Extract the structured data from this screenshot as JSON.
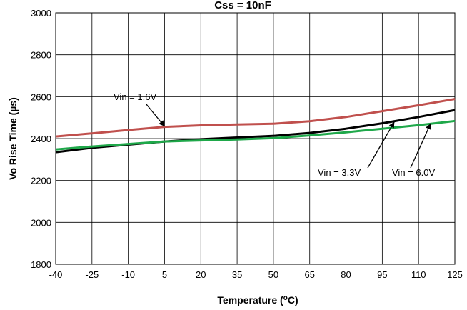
{
  "chart_data": {
    "type": "line",
    "title": "Css = 10nF",
    "xlabel": "Temperature (",
    "xlabel_sup": "o",
    "xlabel_tail": "C)",
    "ylabel": "Vo Rise Time  (µs)",
    "xlim": [
      -40,
      125
    ],
    "ylim": [
      1800,
      3000
    ],
    "xticks": [
      -40,
      -25,
      -10,
      5,
      20,
      35,
      50,
      65,
      80,
      95,
      110,
      125
    ],
    "yticks": [
      1800,
      2000,
      2200,
      2400,
      2600,
      2800,
      3000
    ],
    "grid": true,
    "series": [
      {
        "name": "Vin = 1.6V",
        "color": "#c0504d",
        "x": [
          -40,
          -25,
          -10,
          5,
          20,
          35,
          50,
          65,
          80,
          95,
          110,
          125
        ],
        "y": [
          2410,
          2425,
          2441,
          2456,
          2463,
          2467,
          2471,
          2483,
          2503,
          2531,
          2559,
          2589
        ]
      },
      {
        "name": "Vin = 3.3V",
        "color": "#000000",
        "x": [
          -40,
          -25,
          -10,
          5,
          20,
          35,
          50,
          65,
          80,
          95,
          110,
          125
        ],
        "y": [
          2335,
          2356,
          2371,
          2386,
          2397,
          2405,
          2413,
          2427,
          2447,
          2473,
          2503,
          2536
        ]
      },
      {
        "name": "Vin = 6.0V",
        "color": "#1fa84a",
        "x": [
          -40,
          -25,
          -10,
          5,
          20,
          35,
          50,
          65,
          80,
          95,
          110,
          125
        ],
        "y": [
          2348,
          2362,
          2374,
          2386,
          2391,
          2396,
          2402,
          2415,
          2430,
          2447,
          2464,
          2484
        ]
      }
    ],
    "annotations": [
      {
        "text": "Vin = 1.6V",
        "target_x": 5,
        "target_y": 2458
      },
      {
        "text": "Vin = 3.3V",
        "target_x": 100,
        "target_y": 2480
      },
      {
        "text": "Vin = 6.0V",
        "target_x": 115,
        "target_y": 2472
      }
    ]
  }
}
